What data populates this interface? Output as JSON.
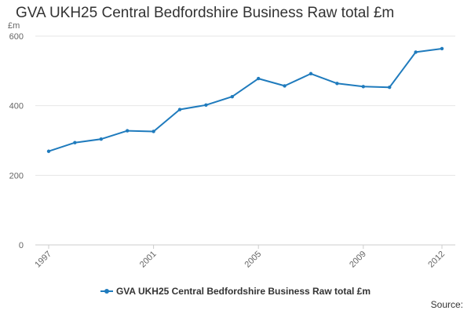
{
  "chart_data": {
    "type": "line",
    "title": "GVA UKH25 Central Bedfordshire Business Raw total £m",
    "ylabel": "£m",
    "xlabel": "",
    "x": [
      1997,
      1998,
      1999,
      2000,
      2001,
      2002,
      2003,
      2004,
      2005,
      2006,
      2007,
      2008,
      2009,
      2010,
      2011,
      2012
    ],
    "x_ticks": [
      "1997",
      "2001",
      "2005",
      "2009",
      "2012"
    ],
    "y_ticks": [
      "0",
      "200",
      "400",
      "600"
    ],
    "ylim": [
      0,
      600
    ],
    "grid": true,
    "legend": "bottom",
    "series": [
      {
        "name": "GVA UKH25 Central Bedfordshire Business Raw total £m",
        "color": "#1f7bbd",
        "values": [
          269,
          294,
          304,
          328,
          326,
          389,
          402,
          426,
          478,
          457,
          492,
          464,
          455,
          453,
          554,
          564
        ]
      }
    ]
  },
  "footer": {
    "source_label": "Source:"
  }
}
